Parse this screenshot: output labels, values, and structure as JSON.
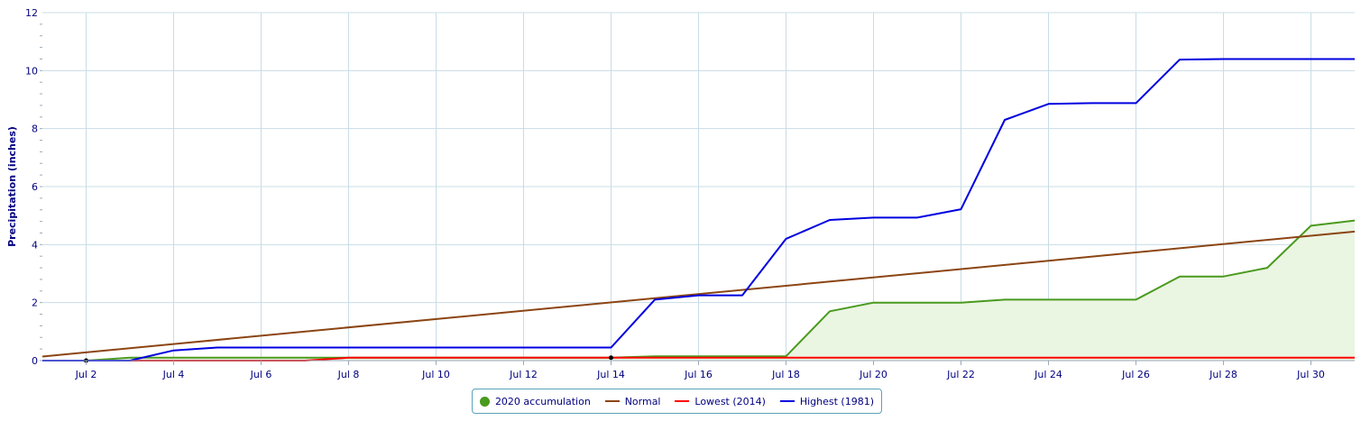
{
  "chart_data": {
    "type": "line",
    "title": "",
    "xlabel": "",
    "ylabel": "Precipitation (inches)",
    "x_tick_labels": [
      "Jul 2",
      "Jul 4",
      "Jul 6",
      "Jul 8",
      "Jul 10",
      "Jul 12",
      "Jul 14",
      "Jul 16",
      "Jul 18",
      "Jul 20",
      "Jul 22",
      "Jul 24",
      "Jul 26",
      "Jul 28",
      "Jul 30"
    ],
    "y_tick_labels": [
      "0",
      "2",
      "4",
      "6",
      "8",
      "10",
      "12"
    ],
    "xlim": [
      1,
      31
    ],
    "ylim": [
      0,
      12
    ],
    "grid": true,
    "legend_position": "bottom",
    "series": [
      {
        "name": "2020 accumulation",
        "color": "#4a9a1e",
        "fill": "#eaf5e2",
        "style": "area",
        "x": [
          1,
          2,
          3,
          4,
          5,
          6,
          7,
          8,
          9,
          10,
          11,
          12,
          13,
          14,
          15,
          16,
          17,
          18,
          19,
          20,
          21,
          22,
          23,
          24,
          25,
          26,
          27,
          28,
          29,
          30,
          31
        ],
        "values": [
          0.0,
          0.0,
          0.1,
          0.1,
          0.1,
          0.1,
          0.1,
          0.1,
          0.1,
          0.1,
          0.1,
          0.1,
          0.1,
          0.1,
          0.15,
          0.15,
          0.15,
          0.15,
          1.7,
          2.0,
          2.0,
          2.0,
          2.1,
          2.1,
          2.1,
          2.1,
          2.9,
          2.9,
          3.2,
          4.65,
          4.83
        ]
      },
      {
        "name": "Normal",
        "color": "#8b4513",
        "style": "line",
        "x": [
          1,
          31
        ],
        "values": [
          0.14,
          4.45
        ]
      },
      {
        "name": "Lowest (2014)",
        "color": "#ff0000",
        "style": "line",
        "x": [
          1,
          2,
          3,
          4,
          5,
          6,
          7,
          8,
          9,
          10,
          11,
          12,
          13,
          14,
          15,
          16,
          17,
          18,
          19,
          20,
          21,
          22,
          23,
          24,
          25,
          26,
          27,
          28,
          29,
          30,
          31
        ],
        "values": [
          0.0,
          0.0,
          0.0,
          0.0,
          0.0,
          0.0,
          0.0,
          0.1,
          0.1,
          0.1,
          0.1,
          0.1,
          0.1,
          0.1,
          0.1,
          0.1,
          0.1,
          0.1,
          0.1,
          0.1,
          0.1,
          0.1,
          0.1,
          0.1,
          0.1,
          0.1,
          0.1,
          0.1,
          0.1,
          0.1,
          0.1
        ]
      },
      {
        "name": "Highest (1981)",
        "color": "#0000e0",
        "style": "line",
        "x": [
          1,
          2,
          3,
          4,
          5,
          6,
          7,
          8,
          9,
          10,
          11,
          12,
          13,
          14,
          15,
          16,
          17,
          18,
          19,
          20,
          21,
          22,
          23,
          24,
          25,
          26,
          27,
          28,
          29,
          30,
          31
        ],
        "values": [
          0.0,
          0.0,
          0.0,
          0.35,
          0.45,
          0.45,
          0.45,
          0.45,
          0.45,
          0.45,
          0.45,
          0.45,
          0.45,
          0.45,
          2.1,
          2.25,
          2.25,
          4.2,
          4.85,
          4.93,
          4.93,
          5.22,
          8.3,
          8.85,
          8.88,
          8.88,
          10.38,
          10.4,
          10.4,
          10.4,
          10.4
        ]
      }
    ],
    "markers": [
      {
        "x": 2,
        "y": 0.0,
        "color": "#000000"
      },
      {
        "x": 14,
        "y": 0.1,
        "color": "#000000"
      }
    ]
  },
  "legend": {
    "items": [
      {
        "label": "2020 accumulation",
        "color": "#4a9a1e",
        "shape": "dot"
      },
      {
        "label": "Normal",
        "color": "#8b4513",
        "shape": "line"
      },
      {
        "label": "Lowest (2014)",
        "color": "#ff0000",
        "shape": "line"
      },
      {
        "label": "Highest (1981)",
        "color": "#0000e0",
        "shape": "line"
      }
    ]
  }
}
